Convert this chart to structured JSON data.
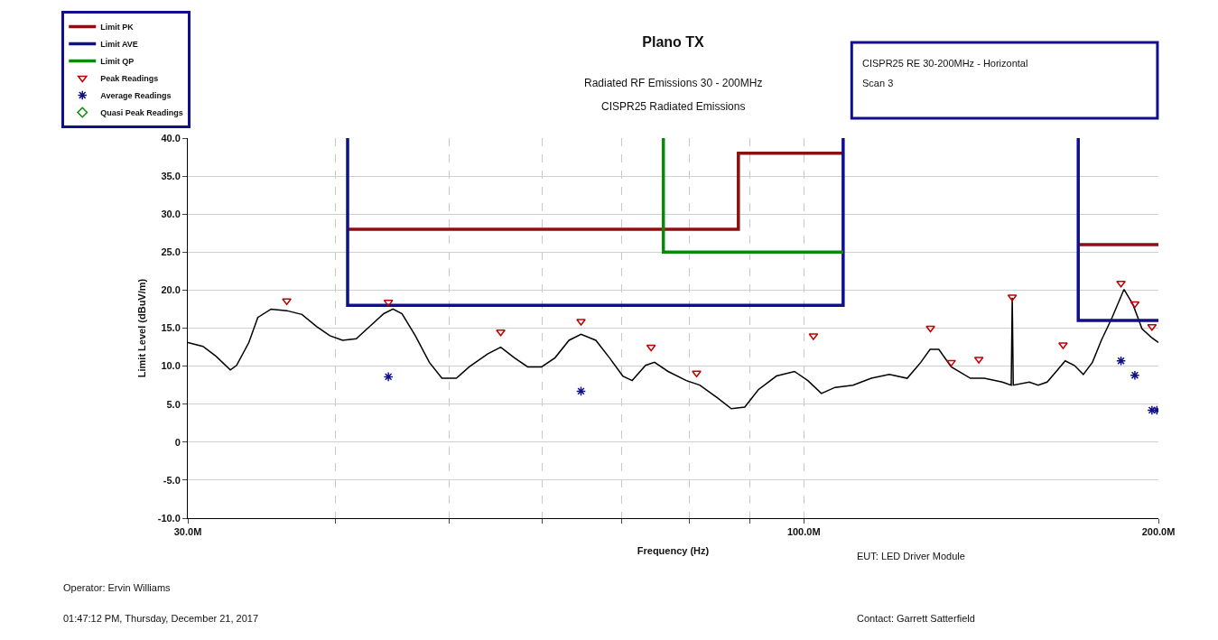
{
  "chart_data": {
    "type": "line",
    "title": "Plano TX",
    "subtitle": "Radiated RF Emissions 30 - 200MHz",
    "xlabel": "Frequency (Hz)",
    "ylabel": "Limit Level (dBuV/m)",
    "annotations": [
      "CISPR25 Radiated Emissions",
      "CISPR25 RE 30-200MHz - Horizontal",
      "Scan 3",
      "EUT: LED Driver Module",
      "Operator: Ervin Williams",
      "01:47:12 PM, Thursday, December 21, 2017",
      "Contact: Garrett Satterfield"
    ],
    "log": "x",
    "grid": true,
    "legend": "top left",
    "line_style": "solid",
    "xlim": [
      30,
      200
    ],
    "xticks": [
      {
        "value": 30,
        "label": "30.0M"
      },
      {
        "value": 40,
        "label": null
      },
      {
        "value": 50,
        "label": null
      },
      {
        "value": 60,
        "label": null
      },
      {
        "value": 70,
        "label": null
      },
      {
        "value": 80,
        "label": null
      },
      {
        "value": 90,
        "label": null
      },
      {
        "value": 100,
        "label": "100.0M"
      },
      {
        "value": 200,
        "label": "200.0M"
      }
    ],
    "ylim": [
      -10,
      40
    ],
    "yticks": [
      {
        "value": 40,
        "label": "40.0"
      },
      {
        "value": 35,
        "label": "35.0"
      },
      {
        "value": 30,
        "label": "30.0"
      },
      {
        "value": 25,
        "label": "25.0"
      },
      {
        "value": 20,
        "label": "20.0"
      },
      {
        "value": 15,
        "label": "15.0"
      },
      {
        "value": 10,
        "label": "10.0"
      },
      {
        "value": 5,
        "label": "5.0"
      },
      0,
      {
        "value": -5,
        "label": "-5.0"
      },
      {
        "value": -10,
        "label": "-10.0"
      }
    ],
    "series": [
      {
        "name": "Limit PK",
        "marker": "none",
        "color": "#8b1010",
        "x": [
          41,
          88,
          88,
          108,
          140,
          171,
          200
        ],
        "values": [
          28,
          28,
          38,
          38,
          null,
          26,
          26
        ]
      },
      {
        "name": "Limit AVE",
        "marker": "none",
        "color": "#10108c",
        "x": [
          41,
          41,
          108,
          108,
          140,
          171,
          171,
          200
        ],
        "values": [
          40,
          18,
          18,
          40,
          null,
          40,
          16,
          16
        ]
      },
      {
        "name": "Limit QP",
        "marker": "none",
        "color": "#0a8a0a",
        "x": [
          76,
          76,
          108
        ],
        "values": [
          40,
          25,
          25
        ]
      },
      {
        "name": "Peak Readings",
        "type": "scatter",
        "marker": "triangle",
        "color": "#c00000",
        "x": [
          36.4,
          44.4,
          55.3,
          64.7,
          74.2,
          81.1,
          101.9,
          128.1,
          133.4,
          140.8,
          150.3,
          166.0,
          185.9,
          191.0,
          197.5
        ],
        "values": [
          18.6,
          18.4,
          14.5,
          15.9,
          12.5,
          9.1,
          14.0,
          15.0,
          10.5,
          10.9,
          19.1,
          12.8,
          20.9,
          18.2,
          15.2
        ]
      },
      {
        "name": "Average Readings",
        "type": "scatter",
        "marker": "cross",
        "color": "#10108c",
        "x": [
          44.4,
          64.7,
          185.9,
          191.0,
          197.5,
          199.4
        ],
        "values": [
          8.6,
          6.7,
          10.7,
          8.8,
          4.2,
          4.2
        ]
      },
      {
        "name": "Quasi Peak Readings",
        "type": "scatter",
        "marker": "diamond",
        "color": "#0a8a0a"
      },
      {
        "marker": "none",
        "color": "#000000",
        "x": [
          30.0,
          30.9,
          31.7,
          32.6,
          33.0,
          33.8,
          34.4,
          35.3,
          36.4,
          37.5,
          38.6,
          39.6,
          40.6,
          41.7,
          42.8,
          44.0,
          44.8,
          45.6,
          46.8,
          48.1,
          49.3,
          50.7,
          52.0,
          53.9,
          55.3,
          56.8,
          58.3,
          59.9,
          61.5,
          63.2,
          64.7,
          66.6,
          68.4,
          70.2,
          71.5,
          73.4,
          74.7,
          76.7,
          79.5,
          81.6,
          84.5,
          86.8,
          89.1,
          91.5,
          94.8,
          98.2,
          100.8,
          103.5,
          106.3,
          110.1,
          114.1,
          118.2,
          122.4,
          125.7,
          128.0,
          130.2,
          133.4,
          138.5,
          142.3,
          147.4,
          150.0,
          150.3,
          150.6,
          155.4,
          158.1,
          160.9,
          163.8,
          166.7,
          169.7,
          172.7,
          175.8,
          178.9,
          182.7,
          187.0,
          190.3,
          193.7,
          197.2,
          200.0
        ],
        "values": [
          13.1,
          12.6,
          11.3,
          9.5,
          10.1,
          13.1,
          16.4,
          17.5,
          17.3,
          16.8,
          15.2,
          14.0,
          13.4,
          13.6,
          15.2,
          16.9,
          17.5,
          16.9,
          14.0,
          10.5,
          8.4,
          8.4,
          9.9,
          11.6,
          12.5,
          11.1,
          9.9,
          9.9,
          11.1,
          13.4,
          14.2,
          13.4,
          11.1,
          8.7,
          8.1,
          10.1,
          10.5,
          9.3,
          8.1,
          7.5,
          5.8,
          4.4,
          4.6,
          6.9,
          8.7,
          9.3,
          8.1,
          6.4,
          7.2,
          7.5,
          8.4,
          8.9,
          8.4,
          10.5,
          12.2,
          12.2,
          9.9,
          8.4,
          8.4,
          7.9,
          7.5,
          19.0,
          7.5,
          7.9,
          7.5,
          7.9,
          9.3,
          10.7,
          10.1,
          8.9,
          10.5,
          13.4,
          16.4,
          20.1,
          18.1,
          14.9,
          13.8,
          13.1
        ]
      }
    ]
  }
}
